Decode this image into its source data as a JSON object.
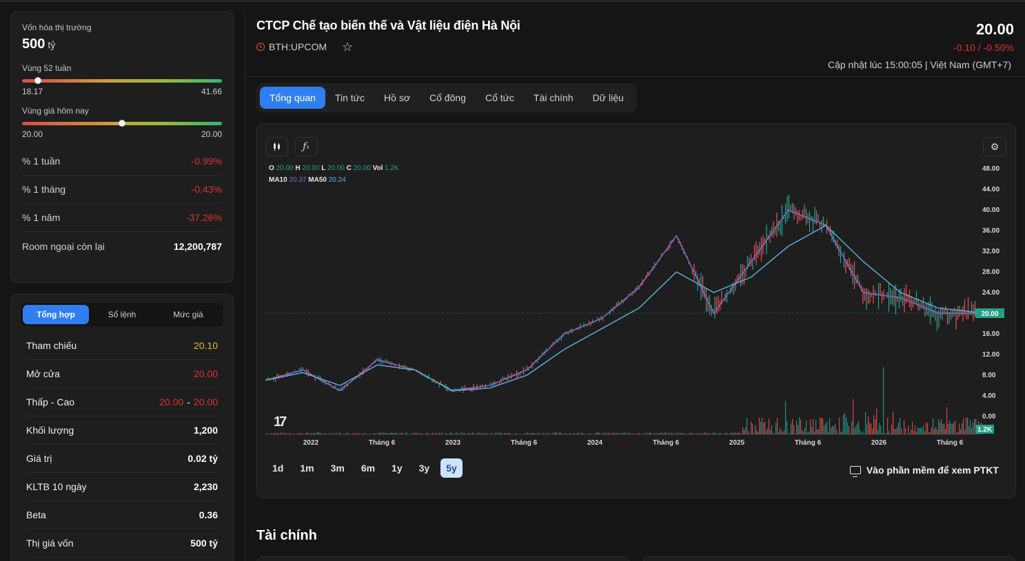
{
  "stats": {
    "market_cap_label": "Vốn hóa thị trường",
    "market_cap_value": "500",
    "market_cap_unit": "tỷ",
    "range52_label": "Vùng 52 tuần",
    "range52_low": "18.17",
    "range52_high": "41.66",
    "range52_position": 0.08,
    "today_label": "Vùng giá hôm nay",
    "today_low": "20.00",
    "today_high": "20.00",
    "today_position": 0.5,
    "rows": [
      {
        "label": "% 1 tuần",
        "value": "-0.99%"
      },
      {
        "label": "% 1 tháng",
        "value": "-0.43%"
      },
      {
        "label": "% 1 năm",
        "value": "-37.26%"
      },
      {
        "label": "Room ngoại còn lại",
        "value": "12,200,787"
      }
    ]
  },
  "summary": {
    "tabs": [
      "Tổng hợp",
      "Sổ lệnh",
      "Mức giá"
    ],
    "rows": [
      {
        "label": "Tham chiếu",
        "value": "20.10"
      },
      {
        "label": "Mở cửa",
        "value": "20.00"
      },
      {
        "label": "Thấp - Cao",
        "low": "20.00",
        "high": "20.00"
      },
      {
        "label": "Khối lượng",
        "value": "1,200"
      },
      {
        "label": "Giá trị",
        "value": "0.02 tỷ"
      },
      {
        "label": "KLTB 10 ngày",
        "value": "2,230"
      },
      {
        "label": "Beta",
        "value": "0.36"
      },
      {
        "label": "Thị giá vốn",
        "value": "500 tỷ"
      }
    ],
    "low_high_sep": "-"
  },
  "header": {
    "company_name": "CTCP Chế tạo biến thế và Vật liệu điện Hà Nội",
    "ticker": "BTH:UPCOM",
    "price": "20.00",
    "change": "-0.10 / -0.50%",
    "updated": "Cập nhật lúc 15:00:05 | Việt Nam (GMT+7)"
  },
  "tabs": [
    "Tổng quan",
    "Tin tức",
    "Hồ sơ",
    "Cổ đông",
    "Cổ tức",
    "Tài chính",
    "Dữ liệu"
  ],
  "chart": {
    "legend": {
      "o_label": "O",
      "o": "20.00",
      "h_label": "H",
      "h": "20.00",
      "l_label": "L",
      "l": "20.00",
      "c_label": "C",
      "c": "20.00",
      "vol_label": "Vol",
      "vol": "1.2K",
      "ma10_label": "MA10",
      "ma10": "20.37",
      "ma50_label": "MA50",
      "ma50": "20.24"
    },
    "tv_logo": "17",
    "ranges": [
      "1d",
      "1m",
      "3m",
      "6m",
      "1y",
      "3y",
      "5y"
    ],
    "active_range": "5y",
    "ptkt_label": "Vào phần mềm để xem PTKT"
  },
  "chart_data": {
    "type": "line",
    "title": "",
    "y_ticks": [
      "48.00",
      "44.00",
      "40.00",
      "36.00",
      "32.00",
      "28.00",
      "24.00",
      "20.00",
      "16.00",
      "12.00",
      "8.00",
      "4.00",
      "0.00"
    ],
    "x_ticks": [
      "2022",
      "Tháng 6",
      "2023",
      "Tháng 6",
      "2024",
      "Tháng 6",
      "2025",
      "Tháng 6",
      "2026",
      "Tháng 6"
    ],
    "ylim": [
      0,
      48
    ],
    "last_price_label": "20.00",
    "last_volume_label": "1.2K",
    "x": [
      "2021-09",
      "2022-01",
      "2022-06",
      "2022-09",
      "2023-01",
      "2023-06",
      "2023-09",
      "2024-01",
      "2024-06",
      "2024-09",
      "2025-01",
      "2025-02",
      "2025-04",
      "2025-06",
      "2025-09",
      "2025-10",
      "2025-11",
      "2026-01",
      "2026-06",
      "2026-09"
    ],
    "series": [
      {
        "values": [
          7,
          9,
          5,
          11,
          9,
          5,
          6,
          9,
          16,
          19,
          25,
          35,
          20,
          30,
          40,
          37,
          24,
          23,
          20,
          20
        ]
      },
      {
        "values": [
          7,
          8.5,
          6,
          10,
          9,
          5,
          5.5,
          8,
          13,
          17,
          21,
          28,
          24,
          27,
          33,
          37,
          30,
          24,
          21,
          20.2
        ]
      }
    ],
    "grid": false,
    "colors": {
      "candle_up": "#26a69a",
      "candle_down": "#ef5350",
      "ma10": "#8c6ad1",
      "ma50": "#5bb6e3",
      "last_price": "#22a186"
    }
  }
}
